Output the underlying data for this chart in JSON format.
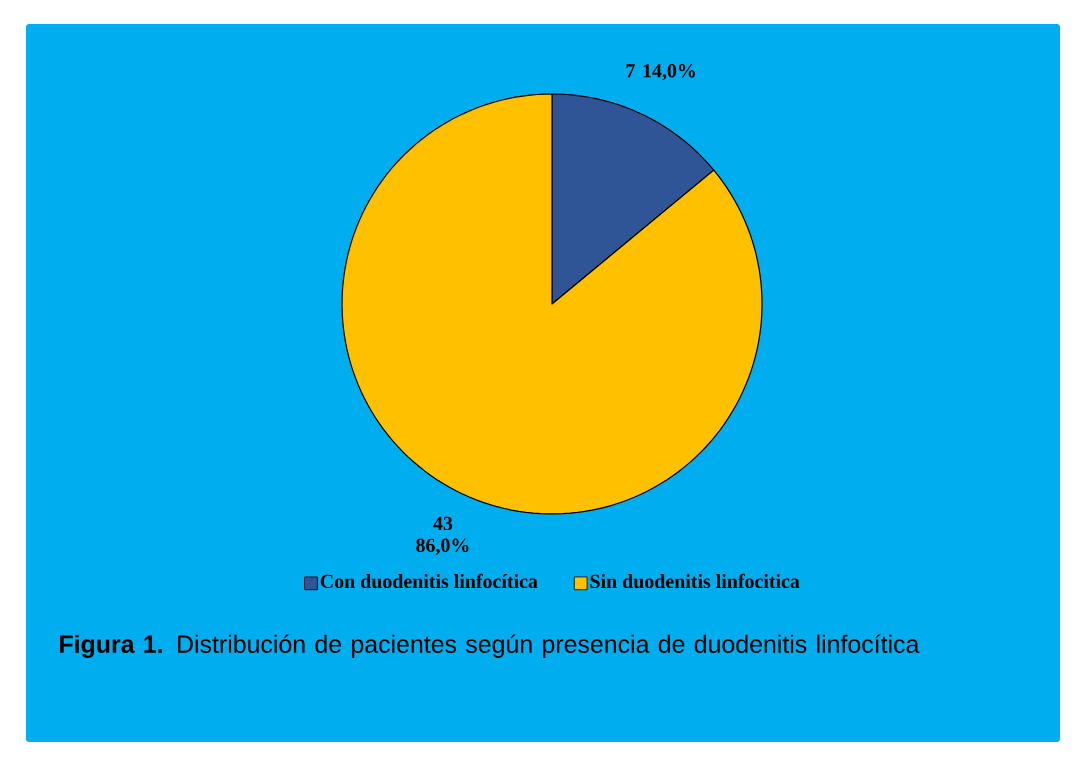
{
  "chart_data": {
    "type": "pie",
    "categories": [
      "Con duodenitis linfocítica",
      "Sin duodenitis linfocitica"
    ],
    "values": [
      7,
      43
    ],
    "colors": [
      "#2f5597",
      "#ffc000"
    ],
    "value_labels": [
      "7 14,0%",
      "43 86,0%"
    ],
    "legend": "bottom",
    "annotations": [
      "**Figura 1.** Distribución de pacientes según presencia de duodenitis linfocítica"
    ]
  }
}
